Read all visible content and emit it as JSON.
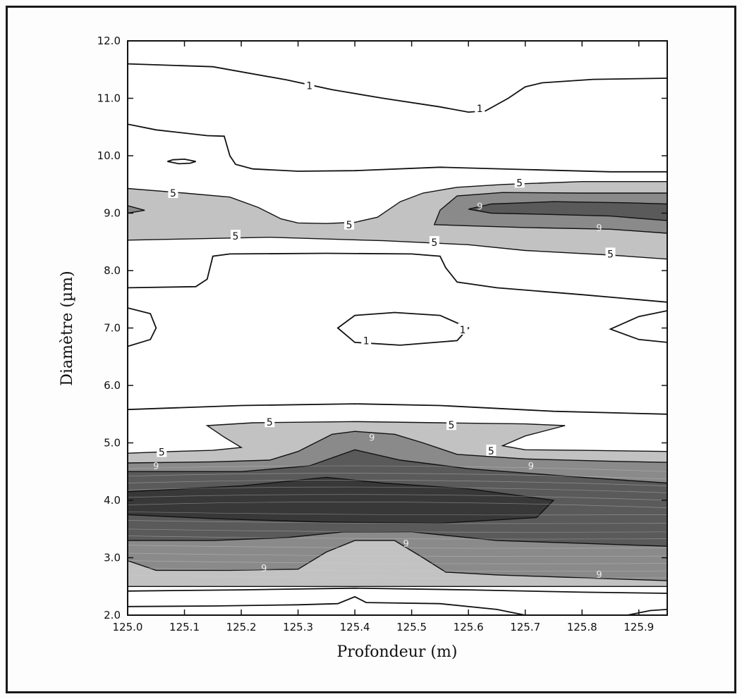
{
  "chart_data": {
    "type": "contour",
    "title": "",
    "xlabel": "Profondeur (m)",
    "ylabel": "Diamètre (µm)",
    "xlim": [
      125.0,
      125.95
    ],
    "ylim": [
      2.0,
      12.0
    ],
    "x_ticks": [
      "125.0",
      "125.1",
      "125.2",
      "125.3",
      "125.4",
      "125.5",
      "125.6",
      "125.7",
      "125.8",
      "125.9"
    ],
    "x_tick_values": [
      125.0,
      125.1,
      125.2,
      125.3,
      125.4,
      125.5,
      125.6,
      125.7,
      125.8,
      125.9
    ],
    "y_ticks": [
      "2.0",
      "3.0",
      "4.0",
      "5.0",
      "6.0",
      "7.0",
      "8.0",
      "9.0",
      "10.0",
      "11.0",
      "12.0"
    ],
    "y_tick_values": [
      2.0,
      3.0,
      4.0,
      5.0,
      6.0,
      7.0,
      8.0,
      9.0,
      10.0,
      11.0,
      12.0
    ],
    "grid": false,
    "colors": {
      "level_5": "#c2c2c2",
      "level_9": "#8a8a8a",
      "level_13": "#5a5a5a",
      "level_17": "#383838",
      "line": "#111111"
    },
    "contour_labels": [
      {
        "text": "1",
        "x": 125.32,
        "y": 11.22
      },
      {
        "text": "1",
        "x": 125.62,
        "y": 10.82
      },
      {
        "text": "5",
        "x": 125.08,
        "y": 9.35
      },
      {
        "text": "5",
        "x": 125.19,
        "y": 8.6
      },
      {
        "text": "5",
        "x": 125.39,
        "y": 8.8
      },
      {
        "text": "5",
        "x": 125.54,
        "y": 8.49
      },
      {
        "text": "5",
        "x": 125.69,
        "y": 9.53
      },
      {
        "text": "5",
        "x": 125.85,
        "y": 8.29
      },
      {
        "text": "9",
        "x": 125.62,
        "y": 9.12
      },
      {
        "text": "9",
        "x": 125.83,
        "y": 8.75
      },
      {
        "text": "1",
        "x": 125.42,
        "y": 6.78
      },
      {
        "text": "1",
        "x": 125.59,
        "y": 6.97
      },
      {
        "text": "5",
        "x": 125.25,
        "y": 5.36
      },
      {
        "text": "5",
        "x": 125.57,
        "y": 5.31
      },
      {
        "text": "5",
        "x": 125.06,
        "y": 4.84
      },
      {
        "text": "5",
        "x": 125.64,
        "y": 4.86
      },
      {
        "text": "9",
        "x": 125.05,
        "y": 4.6
      },
      {
        "text": "9",
        "x": 125.71,
        "y": 4.6
      },
      {
        "text": "9",
        "x": 125.43,
        "y": 5.1
      },
      {
        "text": "9",
        "x": 125.49,
        "y": 3.25
      },
      {
        "text": "9",
        "x": 125.24,
        "y": 2.82
      },
      {
        "text": "9",
        "x": 125.83,
        "y": 2.71
      }
    ],
    "contours": [
      {
        "level": 1,
        "kind": "line",
        "points": [
          [
            125.0,
            11.6
          ],
          [
            125.15,
            11.55
          ],
          [
            125.28,
            11.32
          ],
          [
            125.36,
            11.15
          ],
          [
            125.45,
            11.0
          ],
          [
            125.55,
            10.85
          ],
          [
            125.6,
            10.76
          ],
          [
            125.63,
            10.78
          ],
          [
            125.67,
            11.0
          ],
          [
            125.7,
            11.2
          ],
          [
            125.73,
            11.27
          ],
          [
            125.82,
            11.33
          ],
          [
            125.95,
            11.35
          ]
        ]
      },
      {
        "level": 1,
        "kind": "line",
        "points": [
          [
            125.0,
            10.55
          ],
          [
            125.05,
            10.45
          ],
          [
            125.14,
            10.35
          ],
          [
            125.17,
            10.34
          ],
          [
            125.18,
            10.0
          ],
          [
            125.19,
            9.85
          ],
          [
            125.22,
            9.77
          ],
          [
            125.3,
            9.73
          ],
          [
            125.4,
            9.74
          ],
          [
            125.55,
            9.8
          ],
          [
            125.7,
            9.76
          ],
          [
            125.85,
            9.72
          ],
          [
            125.95,
            9.72
          ]
        ]
      },
      {
        "level": 1,
        "kind": "line",
        "closed": true,
        "points": [
          [
            125.07,
            9.9
          ],
          [
            125.09,
            9.86
          ],
          [
            125.11,
            9.87
          ],
          [
            125.12,
            9.9
          ],
          [
            125.1,
            9.94
          ],
          [
            125.08,
            9.93
          ]
        ]
      },
      {
        "level": 5,
        "kind": "fill",
        "shade": "level_5",
        "closed": true,
        "points": [
          [
            125.0,
            9.43
          ],
          [
            125.1,
            9.35
          ],
          [
            125.18,
            9.28
          ],
          [
            125.23,
            9.1
          ],
          [
            125.27,
            8.9
          ],
          [
            125.3,
            8.83
          ],
          [
            125.35,
            8.82
          ],
          [
            125.4,
            8.84
          ],
          [
            125.44,
            8.93
          ],
          [
            125.48,
            9.2
          ],
          [
            125.52,
            9.35
          ],
          [
            125.58,
            9.45
          ],
          [
            125.66,
            9.5
          ],
          [
            125.8,
            9.55
          ],
          [
            125.95,
            9.55
          ],
          [
            125.95,
            8.2
          ],
          [
            125.85,
            8.27
          ],
          [
            125.7,
            8.35
          ],
          [
            125.6,
            8.45
          ],
          [
            125.45,
            8.52
          ],
          [
            125.25,
            8.58
          ],
          [
            125.1,
            8.55
          ],
          [
            125.0,
            8.53
          ]
        ]
      },
      {
        "level": 9,
        "kind": "fill",
        "shade": "level_9",
        "closed": true,
        "points": [
          [
            125.0,
            9.13
          ],
          [
            125.03,
            9.05
          ],
          [
            125.0,
            9.0
          ]
        ]
      },
      {
        "level": 9,
        "kind": "fill",
        "shade": "level_9",
        "closed": true,
        "points": [
          [
            125.54,
            8.8
          ],
          [
            125.55,
            9.05
          ],
          [
            125.58,
            9.3
          ],
          [
            125.66,
            9.36
          ],
          [
            125.8,
            9.35
          ],
          [
            125.95,
            9.35
          ],
          [
            125.95,
            8.65
          ],
          [
            125.85,
            8.72
          ],
          [
            125.7,
            8.75
          ],
          [
            125.6,
            8.78
          ]
        ]
      },
      {
        "level": 13,
        "kind": "fill",
        "shade": "level_13",
        "closed": true,
        "points": [
          [
            125.6,
            9.07
          ],
          [
            125.64,
            9.16
          ],
          [
            125.75,
            9.2
          ],
          [
            125.88,
            9.18
          ],
          [
            125.95,
            9.16
          ],
          [
            125.95,
            8.87
          ],
          [
            125.85,
            8.95
          ],
          [
            125.73,
            8.98
          ],
          [
            125.64,
            9.0
          ]
        ]
      },
      {
        "level": 1,
        "kind": "line",
        "points": [
          [
            125.0,
            7.7
          ],
          [
            125.12,
            7.72
          ],
          [
            125.14,
            7.85
          ],
          [
            125.15,
            8.25
          ],
          [
            125.18,
            8.29
          ],
          [
            125.35,
            8.3
          ],
          [
            125.5,
            8.29
          ],
          [
            125.55,
            8.25
          ],
          [
            125.56,
            8.05
          ],
          [
            125.58,
            7.8
          ],
          [
            125.65,
            7.7
          ],
          [
            125.8,
            7.58
          ],
          [
            125.95,
            7.45
          ]
        ]
      },
      {
        "level": 1,
        "kind": "line",
        "closed": true,
        "points": [
          [
            125.0,
            7.35
          ],
          [
            125.04,
            7.25
          ],
          [
            125.05,
            7.0
          ],
          [
            125.04,
            6.8
          ],
          [
            125.0,
            6.68
          ]
        ]
      },
      {
        "level": 1,
        "kind": "line",
        "closed": true,
        "points": [
          [
            125.37,
            7.0
          ],
          [
            125.4,
            7.22
          ],
          [
            125.47,
            7.27
          ],
          [
            125.55,
            7.22
          ],
          [
            125.6,
            7.0
          ],
          [
            125.58,
            6.78
          ],
          [
            125.48,
            6.7
          ],
          [
            125.4,
            6.75
          ]
        ]
      },
      {
        "level": 1,
        "kind": "line",
        "closed": true,
        "points": [
          [
            125.95,
            7.3
          ],
          [
            125.9,
            7.2
          ],
          [
            125.85,
            6.98
          ],
          [
            125.9,
            6.8
          ],
          [
            125.95,
            6.75
          ]
        ]
      },
      {
        "level": 1,
        "kind": "line",
        "points": [
          [
            125.0,
            5.58
          ],
          [
            125.2,
            5.65
          ],
          [
            125.4,
            5.68
          ],
          [
            125.55,
            5.65
          ],
          [
            125.75,
            5.55
          ],
          [
            125.95,
            5.5
          ]
        ]
      },
      {
        "level": 5,
        "kind": "fill",
        "shade": "level_5",
        "closed": true,
        "points": [
          [
            125.0,
            4.82
          ],
          [
            125.08,
            4.85
          ],
          [
            125.15,
            4.87
          ],
          [
            125.2,
            4.92
          ],
          [
            125.17,
            5.1
          ],
          [
            125.14,
            5.3
          ],
          [
            125.22,
            5.35
          ],
          [
            125.4,
            5.37
          ],
          [
            125.55,
            5.35
          ],
          [
            125.7,
            5.33
          ],
          [
            125.77,
            5.3
          ],
          [
            125.7,
            5.12
          ],
          [
            125.66,
            4.95
          ],
          [
            125.7,
            4.88
          ],
          [
            125.8,
            4.87
          ],
          [
            125.95,
            4.85
          ],
          [
            125.95,
            2.5
          ],
          [
            125.0,
            2.5
          ]
        ]
      },
      {
        "level": 9,
        "kind": "fill",
        "shade": "level_9",
        "closed": true,
        "points": [
          [
            125.0,
            4.65
          ],
          [
            125.15,
            4.67
          ],
          [
            125.25,
            4.7
          ],
          [
            125.3,
            4.85
          ],
          [
            125.36,
            5.15
          ],
          [
            125.4,
            5.2
          ],
          [
            125.47,
            5.15
          ],
          [
            125.52,
            5.0
          ],
          [
            125.58,
            4.8
          ],
          [
            125.7,
            4.72
          ],
          [
            125.85,
            4.68
          ],
          [
            125.95,
            4.66
          ],
          [
            125.95,
            2.6
          ],
          [
            125.8,
            2.65
          ],
          [
            125.65,
            2.7
          ],
          [
            125.56,
            2.75
          ],
          [
            125.52,
            3.0
          ],
          [
            125.47,
            3.3
          ],
          [
            125.4,
            3.3
          ],
          [
            125.35,
            3.1
          ],
          [
            125.3,
            2.8
          ],
          [
            125.18,
            2.78
          ],
          [
            125.05,
            2.78
          ],
          [
            125.0,
            2.95
          ]
        ]
      },
      {
        "level": 13,
        "kind": "fill",
        "shade": "level_13",
        "closed": true,
        "points": [
          [
            125.0,
            4.5
          ],
          [
            125.2,
            4.5
          ],
          [
            125.32,
            4.6
          ],
          [
            125.4,
            4.88
          ],
          [
            125.48,
            4.7
          ],
          [
            125.6,
            4.55
          ],
          [
            125.8,
            4.4
          ],
          [
            125.95,
            4.3
          ],
          [
            125.95,
            3.2
          ],
          [
            125.8,
            3.25
          ],
          [
            125.65,
            3.3
          ],
          [
            125.5,
            3.45
          ],
          [
            125.38,
            3.45
          ],
          [
            125.28,
            3.35
          ],
          [
            125.15,
            3.3
          ],
          [
            125.0,
            3.3
          ]
        ]
      },
      {
        "level": 17,
        "kind": "fill",
        "shade": "level_17",
        "closed": true,
        "points": [
          [
            125.0,
            4.15
          ],
          [
            125.2,
            4.25
          ],
          [
            125.35,
            4.4
          ],
          [
            125.45,
            4.3
          ],
          [
            125.6,
            4.2
          ],
          [
            125.75,
            4.0
          ],
          [
            125.72,
            3.7
          ],
          [
            125.55,
            3.6
          ],
          [
            125.35,
            3.62
          ],
          [
            125.15,
            3.68
          ],
          [
            125.0,
            3.75
          ]
        ]
      },
      {
        "level": 1,
        "kind": "line",
        "points": [
          [
            125.0,
            2.15
          ],
          [
            125.15,
            2.16
          ],
          [
            125.3,
            2.18
          ],
          [
            125.37,
            2.2
          ],
          [
            125.4,
            2.32
          ],
          [
            125.42,
            2.22
          ],
          [
            125.55,
            2.2
          ],
          [
            125.65,
            2.1
          ],
          [
            125.7,
            2.0
          ]
        ]
      },
      {
        "level": 1,
        "kind": "line",
        "points": [
          [
            125.88,
            2.0
          ],
          [
            125.92,
            2.08
          ],
          [
            125.95,
            2.1
          ]
        ]
      },
      {
        "level": 1,
        "kind": "line",
        "points": [
          [
            125.0,
            2.42
          ],
          [
            125.2,
            2.44
          ],
          [
            125.4,
            2.47
          ],
          [
            125.6,
            2.44
          ],
          [
            125.8,
            2.4
          ],
          [
            125.95,
            2.38
          ]
        ]
      }
    ]
  }
}
